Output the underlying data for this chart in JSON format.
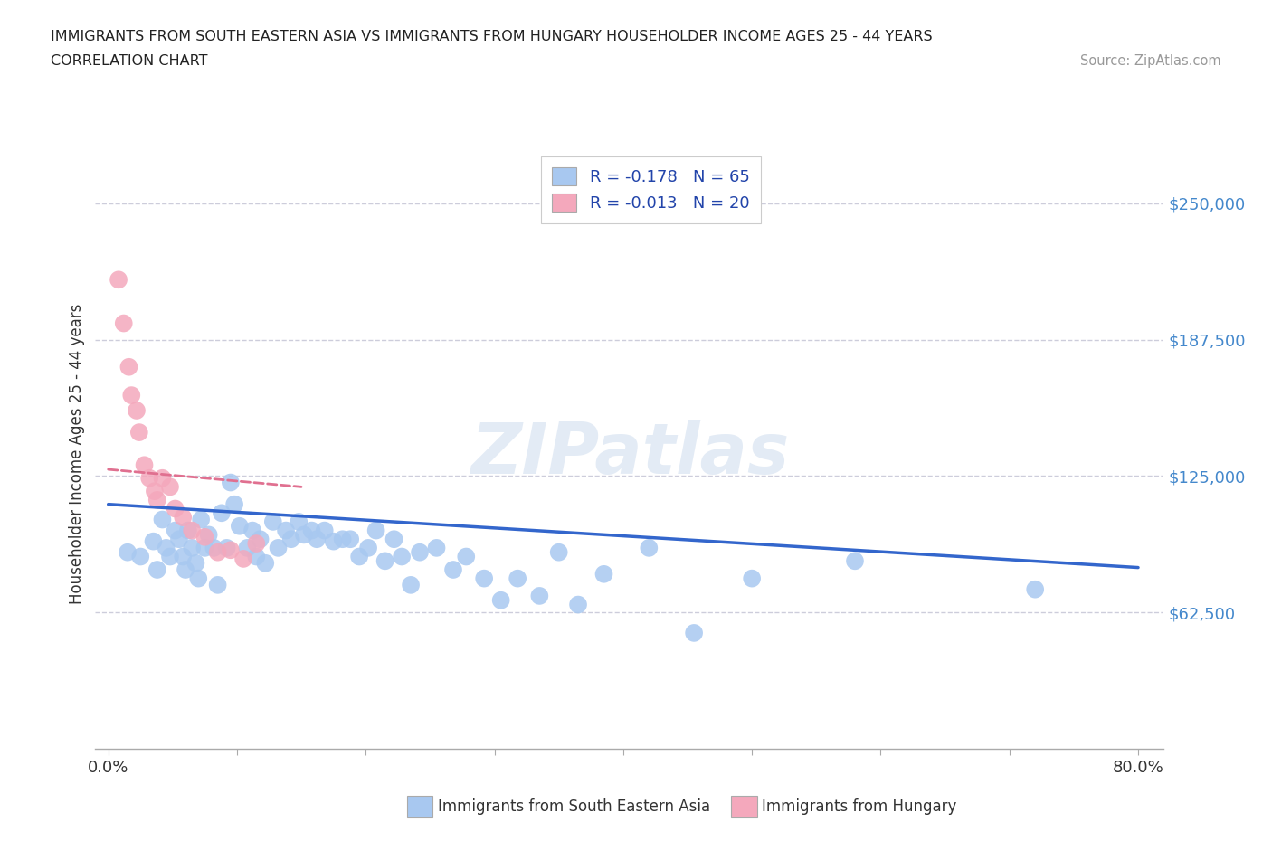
{
  "title_line1": "IMMIGRANTS FROM SOUTH EASTERN ASIA VS IMMIGRANTS FROM HUNGARY HOUSEHOLDER INCOME AGES 25 - 44 YEARS",
  "title_line2": "CORRELATION CHART",
  "source_text": "Source: ZipAtlas.com",
  "ylabel": "Householder Income Ages 25 - 44 years",
  "xlim": [
    -0.01,
    0.82
  ],
  "ylim": [
    0,
    270000
  ],
  "yticks": [
    62500,
    125000,
    187500,
    250000
  ],
  "ytick_labels": [
    "$62,500",
    "$125,000",
    "$187,500",
    "$250,000"
  ],
  "xticks": [
    0.0,
    0.1,
    0.2,
    0.3,
    0.4,
    0.5,
    0.6,
    0.7,
    0.8
  ],
  "xtick_labels": [
    "0.0%",
    "",
    "",
    "",
    "",
    "",
    "",
    "",
    "80.0%"
  ],
  "watermark": "ZIPatlas",
  "legend_r1": "R = -0.178   N = 65",
  "legend_r2": "R = -0.013   N = 20",
  "color_asia": "#A8C8F0",
  "color_hungary": "#F4A8BC",
  "color_line_asia": "#3366CC",
  "color_line_hungary": "#E07090",
  "color_gridline": "#C8C8D8",
  "asia_x": [
    0.015,
    0.025,
    0.035,
    0.038,
    0.042,
    0.045,
    0.048,
    0.052,
    0.055,
    0.058,
    0.06,
    0.062,
    0.065,
    0.068,
    0.07,
    0.072,
    0.075,
    0.078,
    0.082,
    0.085,
    0.088,
    0.092,
    0.095,
    0.098,
    0.102,
    0.108,
    0.112,
    0.115,
    0.118,
    0.122,
    0.128,
    0.132,
    0.138,
    0.142,
    0.148,
    0.152,
    0.158,
    0.162,
    0.168,
    0.175,
    0.182,
    0.188,
    0.195,
    0.202,
    0.208,
    0.215,
    0.222,
    0.228,
    0.235,
    0.242,
    0.255,
    0.268,
    0.278,
    0.292,
    0.305,
    0.318,
    0.335,
    0.35,
    0.365,
    0.385,
    0.42,
    0.455,
    0.5,
    0.58,
    0.72
  ],
  "asia_y": [
    90000,
    88000,
    95000,
    82000,
    105000,
    92000,
    88000,
    100000,
    96000,
    88000,
    82000,
    100000,
    92000,
    85000,
    78000,
    105000,
    92000,
    98000,
    92000,
    75000,
    108000,
    92000,
    122000,
    112000,
    102000,
    92000,
    100000,
    88000,
    96000,
    85000,
    104000,
    92000,
    100000,
    96000,
    104000,
    98000,
    100000,
    96000,
    100000,
    95000,
    96000,
    96000,
    88000,
    92000,
    100000,
    86000,
    96000,
    88000,
    75000,
    90000,
    92000,
    82000,
    88000,
    78000,
    68000,
    78000,
    70000,
    90000,
    66000,
    80000,
    92000,
    53000,
    78000,
    86000,
    73000
  ],
  "hungary_x": [
    0.008,
    0.012,
    0.016,
    0.018,
    0.022,
    0.024,
    0.028,
    0.032,
    0.036,
    0.038,
    0.042,
    0.048,
    0.052,
    0.058,
    0.065,
    0.075,
    0.085,
    0.095,
    0.105,
    0.115
  ],
  "hungary_y": [
    215000,
    195000,
    175000,
    162000,
    155000,
    145000,
    130000,
    124000,
    118000,
    114000,
    124000,
    120000,
    110000,
    106000,
    100000,
    97000,
    90000,
    91000,
    87000,
    94000
  ],
  "asia_trend": [
    0.0,
    0.8,
    112000,
    83000
  ],
  "hungary_trend": [
    0.0,
    0.15,
    128000,
    120000
  ],
  "background_color": "#FFFFFF"
}
